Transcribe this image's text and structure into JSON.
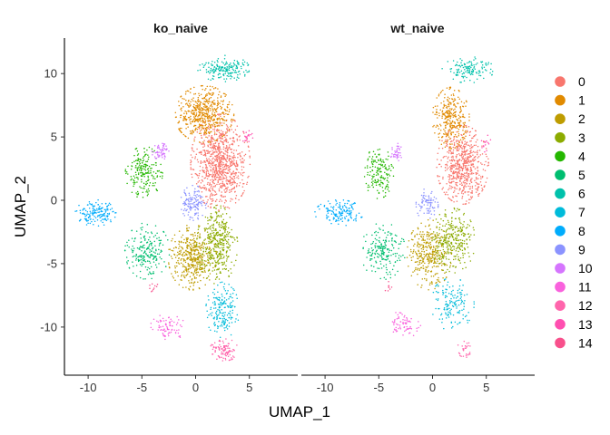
{
  "chart_data": {
    "type": "scatter",
    "xlabel": "UMAP_1",
    "ylabel": "UMAP_2",
    "xlim": [
      -12.2,
      9.5
    ],
    "ylim": [
      -13.8,
      12.8
    ],
    "x_ticks": [
      -10,
      -5,
      0,
      5
    ],
    "y_ticks": [
      10,
      5,
      0,
      -5,
      -10
    ],
    "x_tick_labels": [
      "-10",
      "-5",
      "0",
      "5"
    ],
    "y_tick_labels": [
      "10",
      "5",
      "0",
      "-5",
      "-10"
    ],
    "grid": false,
    "legend_position": "right",
    "legend": [
      {
        "label": "0",
        "color": "#F8766D"
      },
      {
        "label": "1",
        "color": "#E18A00"
      },
      {
        "label": "2",
        "color": "#BE9C00"
      },
      {
        "label": "3",
        "color": "#8CAB00"
      },
      {
        "label": "4",
        "color": "#24B700"
      },
      {
        "label": "5",
        "color": "#00BE70"
      },
      {
        "label": "6",
        "color": "#00C1AB"
      },
      {
        "label": "7",
        "color": "#00BBDA"
      },
      {
        "label": "8",
        "color": "#00ACFC"
      },
      {
        "label": "9",
        "color": "#8B93FF"
      },
      {
        "label": "10",
        "color": "#D575FE"
      },
      {
        "label": "11",
        "color": "#F962DD"
      },
      {
        "label": "12",
        "color": "#FF65AC"
      },
      {
        "label": "13",
        "color": "#FF4FB0"
      },
      {
        "label": "14",
        "color": "#F8508C"
      }
    ],
    "facets": [
      {
        "title": "ko_naive",
        "clusters": [
          {
            "cluster": "0",
            "cx": 2.3,
            "cy": 3.0,
            "sx": 1.6,
            "sy": 2.2,
            "n": 900
          },
          {
            "cluster": "1",
            "cx": 0.8,
            "cy": 6.8,
            "sx": 1.6,
            "sy": 1.3,
            "n": 520
          },
          {
            "cluster": "2",
            "cx": -0.3,
            "cy": -4.5,
            "sx": 1.3,
            "sy": 1.5,
            "n": 420
          },
          {
            "cluster": "3",
            "cx": 2.0,
            "cy": -3.5,
            "sx": 1.1,
            "sy": 1.8,
            "n": 380
          },
          {
            "cluster": "4",
            "cx": -4.8,
            "cy": 2.2,
            "sx": 1.0,
            "sy": 1.2,
            "n": 200
          },
          {
            "cluster": "5",
            "cx": -4.5,
            "cy": -4.0,
            "sx": 1.2,
            "sy": 1.3,
            "n": 220
          },
          {
            "cluster": "6",
            "cx": 2.6,
            "cy": 10.4,
            "sx": 1.4,
            "sy": 0.6,
            "n": 180
          },
          {
            "cluster": "7",
            "cx": 2.5,
            "cy": -8.7,
            "sx": 0.9,
            "sy": 1.3,
            "n": 180
          },
          {
            "cluster": "8",
            "cx": -9.3,
            "cy": -1.0,
            "sx": 1.1,
            "sy": 0.6,
            "n": 160
          },
          {
            "cluster": "9",
            "cx": -0.2,
            "cy": -0.2,
            "sx": 0.7,
            "sy": 0.8,
            "n": 130
          },
          {
            "cluster": "10",
            "cx": -3.2,
            "cy": 3.8,
            "sx": 0.5,
            "sy": 0.4,
            "n": 60
          },
          {
            "cluster": "11",
            "cx": -2.5,
            "cy": -10.0,
            "sx": 1.0,
            "sy": 0.6,
            "n": 80
          },
          {
            "cluster": "12",
            "cx": 2.7,
            "cy": -11.8,
            "sx": 0.8,
            "sy": 0.5,
            "n": 100
          },
          {
            "cluster": "13",
            "cx": 4.8,
            "cy": 5.0,
            "sx": 0.3,
            "sy": 0.3,
            "n": 20
          },
          {
            "cluster": "14",
            "cx": -4.0,
            "cy": -6.8,
            "sx": 0.3,
            "sy": 0.3,
            "n": 10
          }
        ]
      },
      {
        "title": "wt_naive",
        "clusters": [
          {
            "cluster": "0",
            "cx": 2.8,
            "cy": 2.8,
            "sx": 1.4,
            "sy": 1.8,
            "n": 620
          },
          {
            "cluster": "1",
            "cx": 1.7,
            "cy": 6.5,
            "sx": 1.0,
            "sy": 1.4,
            "n": 300
          },
          {
            "cluster": "2",
            "cx": -0.3,
            "cy": -4.3,
            "sx": 1.2,
            "sy": 1.6,
            "n": 330
          },
          {
            "cluster": "3",
            "cx": 1.9,
            "cy": -3.2,
            "sx": 1.2,
            "sy": 1.5,
            "n": 300
          },
          {
            "cluster": "4",
            "cx": -5.0,
            "cy": 2.2,
            "sx": 0.8,
            "sy": 1.2,
            "n": 160
          },
          {
            "cluster": "5",
            "cx": -4.6,
            "cy": -4.0,
            "sx": 1.2,
            "sy": 1.3,
            "n": 200
          },
          {
            "cluster": "6",
            "cx": 3.3,
            "cy": 10.3,
            "sx": 1.4,
            "sy": 0.6,
            "n": 130
          },
          {
            "cluster": "7",
            "cx": 1.8,
            "cy": -8.2,
            "sx": 1.2,
            "sy": 1.2,
            "n": 150
          },
          {
            "cluster": "8",
            "cx": -8.7,
            "cy": -1.0,
            "sx": 1.3,
            "sy": 0.6,
            "n": 150
          },
          {
            "cluster": "9",
            "cx": -0.5,
            "cy": -0.3,
            "sx": 0.6,
            "sy": 0.8,
            "n": 80
          },
          {
            "cluster": "10",
            "cx": -3.3,
            "cy": 3.8,
            "sx": 0.4,
            "sy": 0.4,
            "n": 40
          },
          {
            "cluster": "11",
            "cx": -2.7,
            "cy": -9.8,
            "sx": 1.0,
            "sy": 0.6,
            "n": 70
          },
          {
            "cluster": "12",
            "cx": 3.1,
            "cy": -11.8,
            "sx": 0.5,
            "sy": 0.4,
            "n": 30
          },
          {
            "cluster": "13",
            "cx": 4.9,
            "cy": 4.5,
            "sx": 0.3,
            "sy": 0.6,
            "n": 15
          },
          {
            "cluster": "14",
            "cx": -4.0,
            "cy": -6.8,
            "sx": 0.3,
            "sy": 0.3,
            "n": 8
          }
        ]
      }
    ]
  }
}
